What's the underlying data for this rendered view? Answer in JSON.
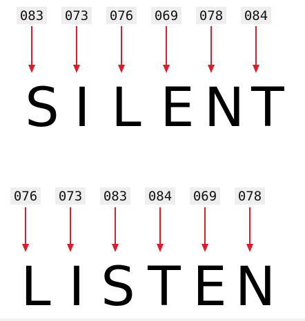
{
  "diagram": {
    "rows": [
      {
        "word": "SILENT",
        "letters": [
          {
            "code": "083",
            "letter": "S"
          },
          {
            "code": "073",
            "letter": "I"
          },
          {
            "code": "076",
            "letter": "L"
          },
          {
            "code": "069",
            "letter": "E"
          },
          {
            "code": "078",
            "letter": "N"
          },
          {
            "code": "084",
            "letter": "T"
          }
        ]
      },
      {
        "word": "LISTEN",
        "letters": [
          {
            "code": "076",
            "letter": "L"
          },
          {
            "code": "073",
            "letter": "I"
          },
          {
            "code": "083",
            "letter": "S"
          },
          {
            "code": "084",
            "letter": "T"
          },
          {
            "code": "069",
            "letter": "E"
          },
          {
            "code": "078",
            "letter": "N"
          }
        ]
      }
    ],
    "colors": {
      "arrow": "#d61f2c",
      "code_background": "#eeeeee",
      "letter": "#000000",
      "background": "#ffffff"
    }
  }
}
